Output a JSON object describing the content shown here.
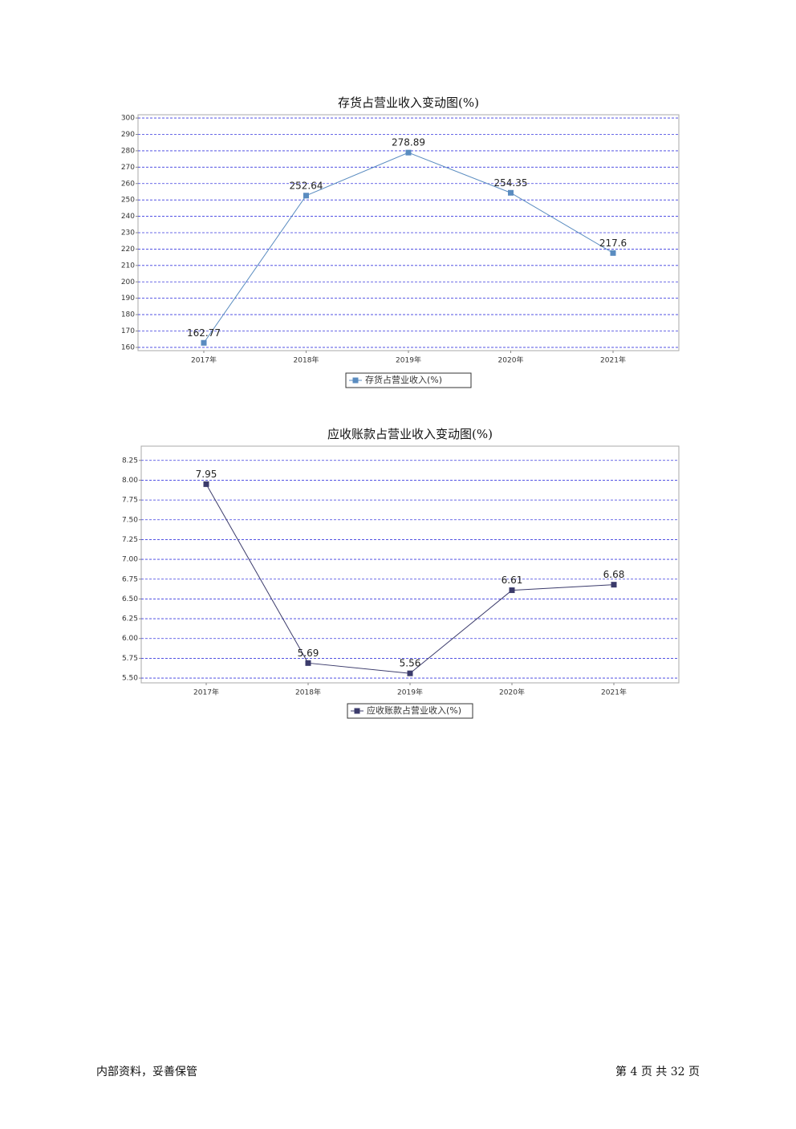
{
  "chart_data": [
    {
      "type": "line",
      "title": "存货占营业收入变动图(%)",
      "categories": [
        "2017年",
        "2018年",
        "2019年",
        "2020年",
        "2021年"
      ],
      "series": [
        {
          "name": "存货占营业收入(%)",
          "color": "#5a8cc0",
          "values": [
            162.77,
            252.64,
            278.89,
            254.35,
            217.6
          ]
        }
      ],
      "ylim": [
        158,
        302
      ],
      "yticks": [
        160,
        170,
        180,
        190,
        200,
        210,
        220,
        230,
        240,
        250,
        260,
        270,
        280,
        290,
        300
      ],
      "grid": true,
      "legend": "bottom"
    },
    {
      "type": "line",
      "title": "应收账款占营业收入变动图(%)",
      "categories": [
        "2017年",
        "2018年",
        "2019年",
        "2020年",
        "2021年"
      ],
      "series": [
        {
          "name": "应收账款占营业收入(%)",
          "color": "#3b3b6b",
          "values": [
            7.95,
            5.69,
            5.56,
            6.61,
            6.68
          ]
        }
      ],
      "ylim": [
        5.44,
        8.43
      ],
      "yticks": [
        {
          "value": 5.5,
          "label": "5.50"
        },
        5.75,
        {
          "value": 6,
          "label": "6.00"
        },
        6.25,
        {
          "value": 6.5,
          "label": "6.50"
        },
        6.75,
        {
          "value": 7,
          "label": "7.00"
        },
        7.25,
        {
          "value": 7.5,
          "label": "7.50"
        },
        7.75,
        {
          "value": 8,
          "label": "8.00"
        },
        8.25
      ],
      "grid": true,
      "legend": "bottom"
    }
  ],
  "footer": {
    "left": "内部资料，妥善保管",
    "right": "第 4 页   共 32 页"
  }
}
